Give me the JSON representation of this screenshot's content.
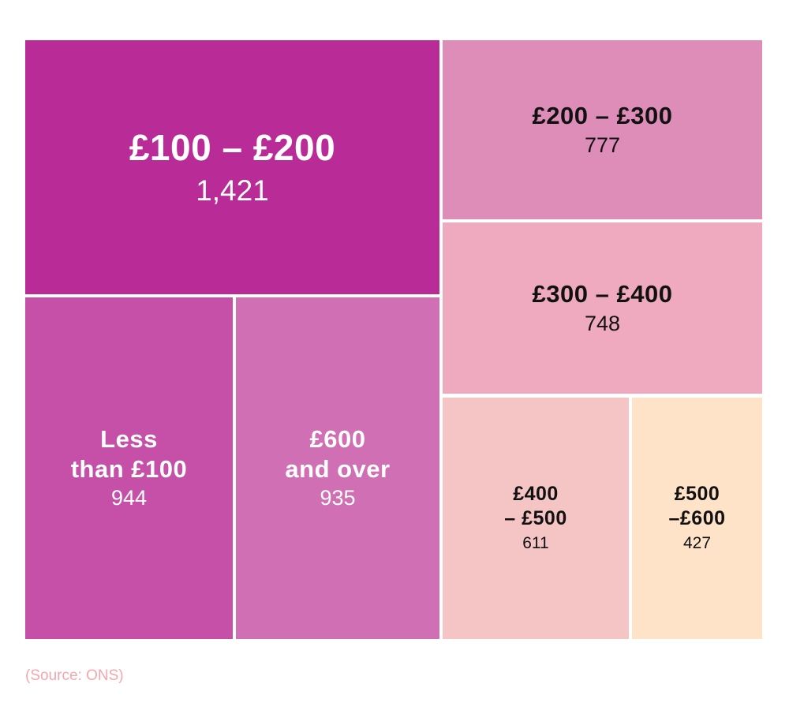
{
  "page": {
    "background": "#ffffff",
    "source_note": "(Source: ONS)",
    "source_color": "#f7a6ad"
  },
  "chart_data": {
    "type": "treemap",
    "title": "",
    "categories": [
      "£100 – £200",
      "£200 – £300",
      "£300 – £400",
      "Less than £100",
      "£600 and over",
      "£400 – £500",
      "£500 – £600"
    ],
    "values": [
      1421,
      777,
      748,
      944,
      935,
      611,
      427
    ],
    "source": "(Source: ONS)",
    "legend": "none",
    "tiles": [
      {
        "id": "100-200",
        "label_lines": [
          "£100 – £200"
        ],
        "value": 1421,
        "value_display": "1,421",
        "bg": "#b92b96",
        "fg": "#ffffff"
      },
      {
        "id": "200-300",
        "label_lines": [
          "£200 – £300"
        ],
        "value": 777,
        "value_display": "777",
        "bg": "#de8db9",
        "fg": "#111111"
      },
      {
        "id": "300-400",
        "label_lines": [
          "£300 – £400"
        ],
        "value": 748,
        "value_display": "748",
        "bg": "#efaabf",
        "fg": "#111111"
      },
      {
        "id": "less-than-100",
        "label_lines": [
          "Less",
          "than £100"
        ],
        "value": 944,
        "value_display": "944",
        "bg": "#c650a7",
        "fg": "#ffffff"
      },
      {
        "id": "600-and-over",
        "label_lines": [
          "£600",
          "and over"
        ],
        "value": 935,
        "value_display": "935",
        "bg": "#d06fb3",
        "fg": "#ffffff"
      },
      {
        "id": "400-500",
        "label_lines": [
          "£400",
          "– £500"
        ],
        "value": 611,
        "value_display": "611",
        "bg": "#f5c5c5",
        "fg": "#111111"
      },
      {
        "id": "500-600",
        "label_lines": [
          "£500",
          "–£600"
        ],
        "value": 427,
        "value_display": "427",
        "bg": "#fee3c9",
        "fg": "#111111"
      }
    ]
  }
}
